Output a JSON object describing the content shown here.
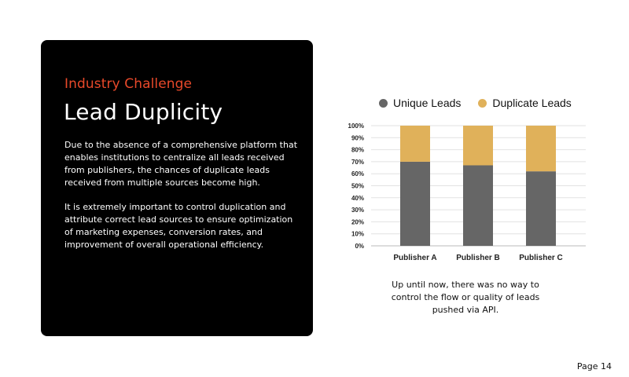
{
  "card": {
    "eyebrow": "Industry Challenge",
    "title": "Lead Duplicity",
    "paragraph1": "Due to the absence of a comprehensive platform that enables institutions to centralize all leads received from publishers, the chances of duplicate leads received from multiple sources become high.",
    "paragraph2": "It is extremely important to control duplication and attribute correct lead sources to ensure optimization of marketing expenses, conversion rates,  and improvement of overall operational efficiency."
  },
  "chart_data": {
    "type": "bar",
    "stacked": true,
    "categories": [
      "Publisher A",
      "Publisher B",
      "Publisher C"
    ],
    "series": [
      {
        "name": "Unique Leads",
        "values": [
          70,
          67,
          62
        ],
        "color": "#666666"
      },
      {
        "name": "Duplicate Leads",
        "values": [
          30,
          33,
          38
        ],
        "color": "#e0b15a"
      }
    ],
    "yticks": [
      "0%",
      "10%",
      "20%",
      "30%",
      "40%",
      "50%",
      "60%",
      "70%",
      "80%",
      "90%",
      "100%"
    ],
    "ylim": [
      0,
      100
    ],
    "grid": true,
    "legend": "top"
  },
  "caption": "Up until now, there was no way to control the flow or quality of leads pushed via API.",
  "page_label": "Page 14"
}
